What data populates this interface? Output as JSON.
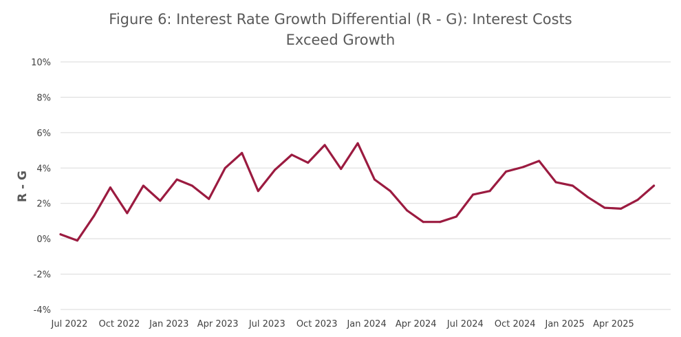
{
  "chart_data": {
    "type": "line",
    "title_lines": [
      "Figure 6: Interest Rate Growth Differential (R - G): Interest Costs",
      "Exceed Growth"
    ],
    "xlabel": "",
    "ylabel": "R - G",
    "ylim": [
      -4,
      10
    ],
    "yticks": [
      -4,
      -2,
      0,
      2,
      4,
      6,
      8,
      10
    ],
    "ytick_labels": [
      "-4%",
      "-2%",
      "0%",
      "2%",
      "4%",
      "6%",
      "8%",
      "10%"
    ],
    "xlim": [
      "2022-07-01",
      "2025-08-01"
    ],
    "xtick_labels": [
      "Jul 2022",
      "Oct 2022",
      "Jan 2023",
      "Apr 2023",
      "Jul 2023",
      "Oct 2023",
      "Jan 2024",
      "Apr 2024",
      "Jul 2024",
      "Oct 2024",
      "Jan 2025",
      "Apr 2025"
    ],
    "xtick_dates": [
      "2022-07-01",
      "2022-10-01",
      "2023-01-01",
      "2023-04-01",
      "2023-07-01",
      "2023-10-01",
      "2024-01-01",
      "2024-04-01",
      "2024-07-01",
      "2024-10-01",
      "2025-01-01",
      "2025-04-01"
    ],
    "grid": true,
    "legend": "none",
    "color": "#9b1b40",
    "series": [
      {
        "x": [
          "2022-07-01",
          "2022-08-01",
          "2022-09-01",
          "2022-10-01",
          "2022-11-01",
          "2022-12-01",
          "2023-01-01",
          "2023-02-01",
          "2023-03-01",
          "2023-04-01",
          "2023-05-01",
          "2023-06-01",
          "2023-07-01",
          "2023-08-01",
          "2023-09-01",
          "2023-10-01",
          "2023-11-01",
          "2023-12-01",
          "2024-01-01",
          "2024-02-01",
          "2024-03-01",
          "2024-04-01",
          "2024-05-01",
          "2024-06-01",
          "2024-07-01",
          "2024-08-01",
          "2024-09-01",
          "2024-10-01",
          "2024-11-01",
          "2024-12-01",
          "2025-01-01",
          "2025-02-01",
          "2025-03-01",
          "2025-04-01",
          "2025-05-01",
          "2025-06-01",
          "2025-07-01"
        ],
        "values": [
          0.25,
          -0.1,
          1.3,
          2.9,
          1.45,
          3.0,
          2.15,
          3.35,
          3.0,
          2.25,
          4.0,
          4.85,
          2.7,
          3.9,
          4.75,
          4.3,
          5.3,
          3.95,
          5.4,
          3.35,
          2.7,
          1.6,
          0.95,
          0.95,
          1.25,
          2.5,
          2.7,
          3.8,
          4.05,
          4.4,
          3.2,
          3.0,
          2.35,
          1.75,
          1.7,
          2.2,
          3.0
        ]
      }
    ]
  }
}
